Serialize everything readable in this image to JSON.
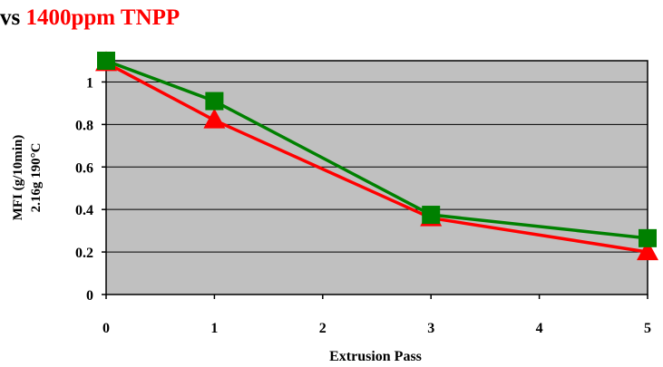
{
  "chart_data": {
    "type": "line",
    "title_parts": [
      "vs ",
      "1400ppm TNPP"
    ],
    "title_colors": [
      "#000000",
      "#ff0000"
    ],
    "xlabel": "Extrusion Pass",
    "ylabel_lines": [
      "MFI (g/10min)",
      "2.16g 190°C"
    ],
    "xlim": [
      0,
      5
    ],
    "ylim": [
      0,
      1.1
    ],
    "x_ticks": [
      0,
      1,
      2,
      3,
      4,
      5
    ],
    "x_tick_labels": [
      "0",
      "1",
      "2",
      "3",
      "4",
      "5"
    ],
    "y_ticks": [
      0,
      0.2,
      0.4,
      0.6,
      0.8,
      1
    ],
    "y_tick_labels": [
      "0",
      "0.2",
      "0.4",
      "0.6",
      "0.8",
      "1"
    ],
    "grid": "horizontal",
    "plot_background": "#c0c0c0",
    "legend": "none",
    "series": [
      {
        "color": "#ff0000",
        "marker": "triangle",
        "x": [
          0,
          1,
          3,
          5
        ],
        "y": [
          1.09,
          0.82,
          0.36,
          0.2
        ]
      },
      {
        "color": "#008000",
        "marker": "square",
        "x": [
          0,
          1,
          3,
          5
        ],
        "y": [
          1.1,
          0.91,
          0.375,
          0.265
        ]
      }
    ]
  }
}
